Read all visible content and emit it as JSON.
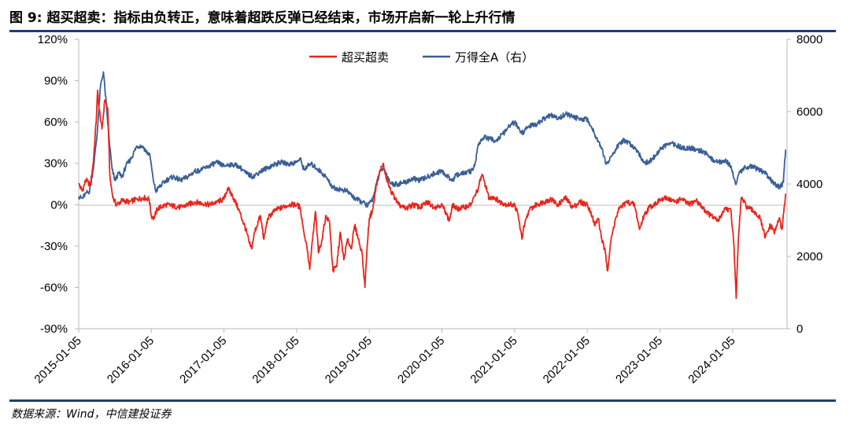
{
  "header": {
    "title": "图 9: 超买超卖：指标由负转正，意味着超跌反弹已经结束，市场开启新一轮上升行情"
  },
  "footer": {
    "source": "数据来源：Wind，中信建投证券"
  },
  "colors": {
    "series_red": "#e8261d",
    "series_blue": "#3a5f96",
    "rule": "#1f3f74"
  },
  "chart_data": {
    "type": "line",
    "title": "超买超卖：指标由负转正，意味着超跌反弹已经结束，市场开启新一轮上升行情",
    "legend_position": "top-center",
    "x_tick_labels": [
      "2015-01-05",
      "2016-01-05",
      "2017-01-05",
      "2018-01-05",
      "2019-01-05",
      "2020-01-05",
      "2021-01-05",
      "2022-01-05",
      "2023-01-05",
      "2024-01-05"
    ],
    "x_range": [
      2015.0,
      2024.75
    ],
    "y_left": {
      "min": -90,
      "max": 120,
      "step": 30,
      "format": "percent",
      "tick_labels": [
        "120%",
        "90%",
        "60%",
        "30%",
        "0%",
        "-30%",
        "-60%",
        "-90%"
      ]
    },
    "y_right": {
      "min": 0,
      "max": 8000,
      "step": 2000,
      "tick_labels": [
        "8000",
        "6000",
        "4000",
        "2000",
        "0"
      ]
    },
    "series": [
      {
        "name": "超买超卖",
        "axis": "left",
        "color": "#e8261d",
        "points": [
          [
            2015.0,
            15
          ],
          [
            2015.05,
            10
          ],
          [
            2015.1,
            18
          ],
          [
            2015.16,
            14
          ],
          [
            2015.2,
            30
          ],
          [
            2015.24,
            60
          ],
          [
            2015.26,
            83
          ],
          [
            2015.28,
            70
          ],
          [
            2015.32,
            55
          ],
          [
            2015.36,
            76
          ],
          [
            2015.4,
            70
          ],
          [
            2015.43,
            20
          ],
          [
            2015.47,
            5
          ],
          [
            2015.52,
            0
          ],
          [
            2015.6,
            3
          ],
          [
            2015.7,
            2
          ],
          [
            2015.8,
            4
          ],
          [
            2015.9,
            5
          ],
          [
            2015.97,
            4
          ],
          [
            2016.0,
            -8
          ],
          [
            2016.04,
            -10
          ],
          [
            2016.08,
            -3
          ],
          [
            2016.2,
            0
          ],
          [
            2016.4,
            -2
          ],
          [
            2016.6,
            2
          ],
          [
            2016.8,
            0
          ],
          [
            2016.9,
            2
          ],
          [
            2017.0,
            4
          ],
          [
            2017.05,
            12
          ],
          [
            2017.12,
            6
          ],
          [
            2017.2,
            -3
          ],
          [
            2017.3,
            -18
          ],
          [
            2017.35,
            -28
          ],
          [
            2017.38,
            -32
          ],
          [
            2017.42,
            -20
          ],
          [
            2017.5,
            -8
          ],
          [
            2017.55,
            -25
          ],
          [
            2017.6,
            -10
          ],
          [
            2017.7,
            -4
          ],
          [
            2017.8,
            -2
          ],
          [
            2017.9,
            0
          ],
          [
            2018.0,
            0
          ],
          [
            2018.05,
            -2
          ],
          [
            2018.1,
            -20
          ],
          [
            2018.14,
            -30
          ],
          [
            2018.18,
            -47
          ],
          [
            2018.22,
            -25
          ],
          [
            2018.26,
            -5
          ],
          [
            2018.3,
            -35
          ],
          [
            2018.35,
            -25
          ],
          [
            2018.4,
            -8
          ],
          [
            2018.45,
            -12
          ],
          [
            2018.5,
            -48
          ],
          [
            2018.55,
            -45
          ],
          [
            2018.6,
            -20
          ],
          [
            2018.65,
            -40
          ],
          [
            2018.7,
            -25
          ],
          [
            2018.75,
            -32
          ],
          [
            2018.8,
            -15
          ],
          [
            2018.85,
            -25
          ],
          [
            2018.9,
            -35
          ],
          [
            2018.94,
            -60
          ],
          [
            2018.97,
            -30
          ],
          [
            2019.0,
            -10
          ],
          [
            2019.05,
            -3
          ],
          [
            2019.1,
            15
          ],
          [
            2019.15,
            25
          ],
          [
            2019.19,
            30
          ],
          [
            2019.22,
            22
          ],
          [
            2019.28,
            12
          ],
          [
            2019.35,
            5
          ],
          [
            2019.4,
            0
          ],
          [
            2019.5,
            -3
          ],
          [
            2019.6,
            0
          ],
          [
            2019.7,
            -2
          ],
          [
            2019.8,
            2
          ],
          [
            2019.9,
            -2
          ],
          [
            2019.99,
            0
          ],
          [
            2020.05,
            -5
          ],
          [
            2020.1,
            -12
          ],
          [
            2020.15,
            0
          ],
          [
            2020.2,
            -3
          ],
          [
            2020.3,
            -2
          ],
          [
            2020.4,
            0
          ],
          [
            2020.5,
            12
          ],
          [
            2020.55,
            22
          ],
          [
            2020.6,
            14
          ],
          [
            2020.65,
            4
          ],
          [
            2020.7,
            6
          ],
          [
            2020.8,
            2
          ],
          [
            2020.9,
            0
          ],
          [
            2021.0,
            0
          ],
          [
            2021.05,
            -8
          ],
          [
            2021.1,
            -25
          ],
          [
            2021.12,
            -18
          ],
          [
            2021.2,
            -4
          ],
          [
            2021.3,
            0
          ],
          [
            2021.4,
            2
          ],
          [
            2021.5,
            4
          ],
          [
            2021.6,
            0
          ],
          [
            2021.7,
            5
          ],
          [
            2021.8,
            -2
          ],
          [
            2021.9,
            2
          ],
          [
            2022.0,
            0
          ],
          [
            2022.05,
            -5
          ],
          [
            2022.1,
            -15
          ],
          [
            2022.15,
            -10
          ],
          [
            2022.2,
            -25
          ],
          [
            2022.25,
            -35
          ],
          [
            2022.28,
            -48
          ],
          [
            2022.32,
            -28
          ],
          [
            2022.38,
            -12
          ],
          [
            2022.45,
            -2
          ],
          [
            2022.55,
            2
          ],
          [
            2022.65,
            0
          ],
          [
            2022.72,
            -18
          ],
          [
            2022.78,
            -8
          ],
          [
            2022.85,
            -2
          ],
          [
            2023.0,
            3
          ],
          [
            2023.1,
            5
          ],
          [
            2023.2,
            2
          ],
          [
            2023.3,
            4
          ],
          [
            2023.4,
            0
          ],
          [
            2023.5,
            3
          ],
          [
            2023.6,
            -3
          ],
          [
            2023.7,
            -8
          ],
          [
            2023.8,
            -12
          ],
          [
            2023.9,
            -2
          ],
          [
            2023.98,
            -5
          ],
          [
            2024.02,
            -30
          ],
          [
            2024.05,
            -68
          ],
          [
            2024.08,
            -25
          ],
          [
            2024.12,
            5
          ],
          [
            2024.2,
            -2
          ],
          [
            2024.3,
            -5
          ],
          [
            2024.38,
            -10
          ],
          [
            2024.45,
            -24
          ],
          [
            2024.52,
            -15
          ],
          [
            2024.58,
            -20
          ],
          [
            2024.64,
            -10
          ],
          [
            2024.68,
            -18
          ],
          [
            2024.71,
            -2
          ],
          [
            2024.73,
            8
          ]
        ]
      },
      {
        "name": "万得全A（右）",
        "axis": "right",
        "color": "#3a5f96",
        "points": [
          [
            2015.0,
            3650
          ],
          [
            2015.05,
            3600
          ],
          [
            2015.1,
            3750
          ],
          [
            2015.15,
            3800
          ],
          [
            2015.2,
            4400
          ],
          [
            2015.25,
            5300
          ],
          [
            2015.3,
            6700
          ],
          [
            2015.34,
            7100
          ],
          [
            2015.38,
            6200
          ],
          [
            2015.42,
            5200
          ],
          [
            2015.46,
            4400
          ],
          [
            2015.5,
            4100
          ],
          [
            2015.55,
            4300
          ],
          [
            2015.6,
            4200
          ],
          [
            2015.65,
            4500
          ],
          [
            2015.72,
            4700
          ],
          [
            2015.8,
            5050
          ],
          [
            2015.88,
            5050
          ],
          [
            2015.93,
            4900
          ],
          [
            2015.98,
            4800
          ],
          [
            2016.02,
            4200
          ],
          [
            2016.06,
            3800
          ],
          [
            2016.1,
            3900
          ],
          [
            2016.2,
            4100
          ],
          [
            2016.3,
            4200
          ],
          [
            2016.4,
            4100
          ],
          [
            2016.5,
            4200
          ],
          [
            2016.6,
            4350
          ],
          [
            2016.7,
            4400
          ],
          [
            2016.8,
            4500
          ],
          [
            2016.9,
            4600
          ],
          [
            2017.0,
            4500
          ],
          [
            2017.1,
            4550
          ],
          [
            2017.2,
            4500
          ],
          [
            2017.3,
            4300
          ],
          [
            2017.4,
            4200
          ],
          [
            2017.5,
            4350
          ],
          [
            2017.6,
            4450
          ],
          [
            2017.7,
            4550
          ],
          [
            2017.8,
            4600
          ],
          [
            2017.9,
            4550
          ],
          [
            2018.0,
            4600
          ],
          [
            2018.05,
            4700
          ],
          [
            2018.1,
            4400
          ],
          [
            2018.15,
            4500
          ],
          [
            2018.2,
            4550
          ],
          [
            2018.3,
            4400
          ],
          [
            2018.4,
            4200
          ],
          [
            2018.5,
            3900
          ],
          [
            2018.6,
            3850
          ],
          [
            2018.7,
            3800
          ],
          [
            2018.8,
            3600
          ],
          [
            2018.9,
            3500
          ],
          [
            2018.98,
            3400
          ],
          [
            2019.05,
            3600
          ],
          [
            2019.1,
            4000
          ],
          [
            2019.15,
            4350
          ],
          [
            2019.2,
            4450
          ],
          [
            2019.25,
            4200
          ],
          [
            2019.3,
            4000
          ],
          [
            2019.4,
            4000
          ],
          [
            2019.5,
            4050
          ],
          [
            2019.6,
            4150
          ],
          [
            2019.7,
            4100
          ],
          [
            2019.8,
            4200
          ],
          [
            2019.9,
            4300
          ],
          [
            2020.0,
            4350
          ],
          [
            2020.08,
            4200
          ],
          [
            2020.15,
            4100
          ],
          [
            2020.2,
            4250
          ],
          [
            2020.3,
            4300
          ],
          [
            2020.4,
            4350
          ],
          [
            2020.45,
            4500
          ],
          [
            2020.5,
            5100
          ],
          [
            2020.58,
            5300
          ],
          [
            2020.65,
            5250
          ],
          [
            2020.75,
            5200
          ],
          [
            2020.85,
            5400
          ],
          [
            2020.95,
            5650
          ],
          [
            2021.0,
            5700
          ],
          [
            2021.1,
            5400
          ],
          [
            2021.2,
            5600
          ],
          [
            2021.3,
            5650
          ],
          [
            2021.4,
            5800
          ],
          [
            2021.5,
            5900
          ],
          [
            2021.6,
            5800
          ],
          [
            2021.7,
            5950
          ],
          [
            2021.8,
            5850
          ],
          [
            2021.9,
            5800
          ],
          [
            2022.0,
            5800
          ],
          [
            2022.05,
            5600
          ],
          [
            2022.1,
            5400
          ],
          [
            2022.15,
            5200
          ],
          [
            2022.2,
            5000
          ],
          [
            2022.26,
            4550
          ],
          [
            2022.3,
            4650
          ],
          [
            2022.4,
            5000
          ],
          [
            2022.5,
            5200
          ],
          [
            2022.6,
            5100
          ],
          [
            2022.7,
            4900
          ],
          [
            2022.78,
            4600
          ],
          [
            2022.84,
            4600
          ],
          [
            2022.95,
            4800
          ],
          [
            2023.0,
            4950
          ],
          [
            2023.1,
            5100
          ],
          [
            2023.2,
            5100
          ],
          [
            2023.3,
            5000
          ],
          [
            2023.4,
            5000
          ],
          [
            2023.5,
            4950
          ],
          [
            2023.6,
            4900
          ],
          [
            2023.7,
            4700
          ],
          [
            2023.8,
            4600
          ],
          [
            2023.9,
            4650
          ],
          [
            2023.98,
            4500
          ],
          [
            2024.04,
            4000
          ],
          [
            2024.08,
            4250
          ],
          [
            2024.15,
            4450
          ],
          [
            2024.25,
            4500
          ],
          [
            2024.35,
            4400
          ],
          [
            2024.45,
            4300
          ],
          [
            2024.55,
            4050
          ],
          [
            2024.65,
            3900
          ],
          [
            2024.7,
            4050
          ],
          [
            2024.73,
            4950
          ]
        ]
      }
    ]
  }
}
